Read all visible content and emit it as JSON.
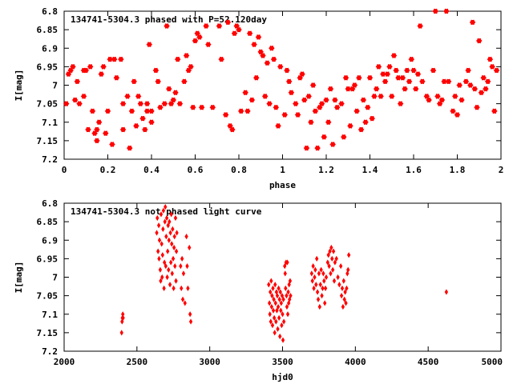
{
  "colors": {
    "points": "#ff0000",
    "axes": "#000000",
    "background": "#ffffff"
  },
  "chart_data": [
    {
      "type": "scatter",
      "title": "134741-5304.3 phased with P=52.120day",
      "xlabel": "phase",
      "ylabel": "I[mag]",
      "xlim": [
        0,
        2
      ],
      "ylim": [
        7.2,
        6.8
      ],
      "y_inverted": true,
      "xticks": [
        "0",
        "0.2",
        "0.4",
        "0.6",
        "0.8",
        "1",
        "1.2",
        "1.4",
        "1.6",
        "1.8",
        "2"
      ],
      "xtick_values": [
        0,
        0.2,
        0.4,
        0.6,
        0.8,
        1,
        1.2,
        1.4,
        1.6,
        1.8,
        2
      ],
      "yticks": [
        "6.8",
        "6.85",
        "6.9",
        "6.95",
        "7",
        "7.05",
        "7.1",
        "7.15",
        "7.2"
      ],
      "ytick_values": [
        6.8,
        6.85,
        6.9,
        6.95,
        7,
        7.05,
        7.1,
        7.15,
        7.2
      ],
      "marker": "star",
      "points": [
        [
          0.01,
          7.05
        ],
        [
          0.02,
          6.97
        ],
        [
          0.03,
          6.96
        ],
        [
          0.04,
          6.95
        ],
        [
          0.05,
          7.04
        ],
        [
          0.06,
          6.99
        ],
        [
          0.07,
          7.05
        ],
        [
          0.09,
          6.96
        ],
        [
          0.09,
          7.03
        ],
        [
          0.1,
          6.96
        ],
        [
          0.11,
          7.12
        ],
        [
          0.12,
          6.95
        ],
        [
          0.13,
          7.07
        ],
        [
          0.14,
          7.13
        ],
        [
          0.15,
          7.12
        ],
        [
          0.15,
          7.15
        ],
        [
          0.16,
          7.1
        ],
        [
          0.17,
          6.97
        ],
        [
          0.18,
          6.95
        ],
        [
          0.19,
          7.13
        ],
        [
          0.2,
          7.07
        ],
        [
          0.21,
          6.93
        ],
        [
          0.22,
          7.16
        ],
        [
          0.23,
          6.93
        ],
        [
          0.24,
          6.98
        ],
        [
          0.26,
          6.93
        ],
        [
          0.27,
          7.05
        ],
        [
          0.27,
          7.12
        ],
        [
          0.29,
          7.03
        ],
        [
          0.3,
          7.17
        ],
        [
          0.31,
          7.07
        ],
        [
          0.32,
          6.99
        ],
        [
          0.33,
          7.11
        ],
        [
          0.34,
          7.03
        ],
        [
          0.35,
          7.05
        ],
        [
          0.36,
          7.09
        ],
        [
          0.37,
          7.12
        ],
        [
          0.38,
          7.05
        ],
        [
          0.38,
          7.07
        ],
        [
          0.39,
          6.89
        ],
        [
          0.4,
          7.07
        ],
        [
          0.4,
          7.1
        ],
        [
          0.42,
          6.96
        ],
        [
          0.43,
          6.99
        ],
        [
          0.44,
          7.06
        ],
        [
          0.46,
          7.05
        ],
        [
          0.47,
          6.84
        ],
        [
          0.48,
          7.01
        ],
        [
          0.49,
          7.05
        ],
        [
          0.5,
          7.04
        ],
        [
          0.51,
          7.02
        ],
        [
          0.52,
          6.93
        ],
        [
          0.53,
          7.05
        ],
        [
          0.55,
          6.99
        ],
        [
          0.56,
          6.92
        ],
        [
          0.57,
          6.96
        ],
        [
          0.58,
          6.95
        ],
        [
          0.59,
          7.06
        ],
        [
          0.6,
          6.88
        ],
        [
          0.61,
          6.86
        ],
        [
          0.62,
          6.87
        ],
        [
          0.63,
          7.06
        ],
        [
          0.65,
          6.84
        ],
        [
          0.66,
          6.89
        ],
        [
          0.68,
          7.06
        ],
        [
          0.71,
          6.84
        ],
        [
          0.72,
          6.93
        ],
        [
          0.74,
          7.08
        ],
        [
          0.75,
          6.83
        ],
        [
          0.76,
          7.11
        ],
        [
          0.77,
          7.12
        ],
        [
          0.78,
          6.86
        ],
        [
          0.79,
          6.84
        ],
        [
          0.8,
          6.85
        ],
        [
          0.81,
          7.07
        ],
        [
          0.83,
          7.02
        ],
        [
          0.84,
          7.07
        ],
        [
          0.85,
          6.86
        ],
        [
          0.86,
          7.04
        ],
        [
          0.87,
          6.89
        ],
        [
          0.88,
          6.98
        ],
        [
          0.89,
          6.87
        ],
        [
          0.9,
          6.91
        ],
        [
          0.91,
          6.92
        ],
        [
          0.92,
          7.03
        ],
        [
          0.93,
          6.94
        ],
        [
          0.94,
          7.05
        ],
        [
          0.95,
          6.9
        ],
        [
          0.96,
          6.93
        ],
        [
          0.97,
          7.06
        ],
        [
          0.98,
          7.11
        ],
        [
          0.99,
          6.95
        ],
        [
          1.01,
          7.08
        ],
        [
          1.02,
          6.96
        ],
        [
          1.03,
          6.99
        ],
        [
          1.04,
          7.02
        ],
        [
          1.06,
          7.05
        ],
        [
          1.07,
          7.08
        ],
        [
          1.08,
          6.98
        ],
        [
          1.09,
          6.97
        ],
        [
          1.1,
          7.04
        ],
        [
          1.11,
          7.17
        ],
        [
          1.12,
          7.03
        ],
        [
          1.13,
          7.1
        ],
        [
          1.14,
          7.0
        ],
        [
          1.15,
          7.07
        ],
        [
          1.16,
          7.17
        ],
        [
          1.17,
          7.06
        ],
        [
          1.18,
          7.05
        ],
        [
          1.19,
          7.14
        ],
        [
          1.2,
          7.04
        ],
        [
          1.21,
          7.1
        ],
        [
          1.22,
          7.01
        ],
        [
          1.23,
          7.16
        ],
        [
          1.24,
          7.04
        ],
        [
          1.25,
          7.06
        ],
        [
          1.27,
          7.05
        ],
        [
          1.28,
          7.14
        ],
        [
          1.29,
          6.98
        ],
        [
          1.3,
          7.01
        ],
        [
          1.31,
          7.11
        ],
        [
          1.32,
          7.01
        ],
        [
          1.33,
          7.0
        ],
        [
          1.34,
          7.07
        ],
        [
          1.35,
          6.98
        ],
        [
          1.36,
          7.12
        ],
        [
          1.37,
          7.04
        ],
        [
          1.38,
          7.1
        ],
        [
          1.39,
          7.06
        ],
        [
          1.4,
          6.98
        ],
        [
          1.41,
          7.09
        ],
        [
          1.42,
          7.03
        ],
        [
          1.43,
          7.01
        ],
        [
          1.44,
          6.95
        ],
        [
          1.45,
          7.03
        ],
        [
          1.46,
          6.97
        ],
        [
          1.47,
          6.99
        ],
        [
          1.48,
          6.97
        ],
        [
          1.49,
          6.95
        ],
        [
          1.5,
          7.03
        ],
        [
          1.51,
          6.92
        ],
        [
          1.52,
          6.96
        ],
        [
          1.53,
          6.98
        ],
        [
          1.54,
          7.05
        ],
        [
          1.55,
          6.98
        ],
        [
          1.56,
          7.01
        ],
        [
          1.57,
          6.96
        ],
        [
          1.58,
          6.99
        ],
        [
          1.59,
          6.93
        ],
        [
          1.6,
          6.96
        ],
        [
          1.61,
          7.01
        ],
        [
          1.62,
          6.97
        ],
        [
          1.63,
          6.84
        ],
        [
          1.64,
          6.99
        ],
        [
          1.66,
          7.03
        ],
        [
          1.67,
          7.04
        ],
        [
          1.69,
          6.96
        ],
        [
          1.7,
          6.8
        ],
        [
          1.71,
          7.03
        ],
        [
          1.72,
          7.05
        ],
        [
          1.73,
          7.04
        ],
        [
          1.74,
          6.99
        ],
        [
          1.75,
          6.8
        ],
        [
          1.76,
          6.99
        ],
        [
          1.78,
          7.07
        ],
        [
          1.79,
          7.03
        ],
        [
          1.8,
          7.08
        ],
        [
          1.81,
          7.0
        ],
        [
          1.82,
          7.04
        ],
        [
          1.84,
          6.99
        ],
        [
          1.85,
          6.96
        ],
        [
          1.86,
          7.0
        ],
        [
          1.87,
          6.83
        ],
        [
          1.88,
          7.01
        ],
        [
          1.89,
          7.06
        ],
        [
          1.9,
          6.88
        ],
        [
          1.91,
          7.02
        ],
        [
          1.92,
          6.98
        ],
        [
          1.93,
          7.01
        ],
        [
          1.94,
          6.99
        ],
        [
          1.95,
          6.93
        ],
        [
          1.96,
          6.95
        ],
        [
          1.97,
          7.07
        ],
        [
          1.98,
          6.96
        ]
      ]
    },
    {
      "type": "scatter",
      "title": "134741-5304.3 not phased light curve",
      "xlabel": "hjd0",
      "ylabel": "I[mag]",
      "xlim": [
        2000,
        5000
      ],
      "ylim": [
        7.2,
        6.8
      ],
      "y_inverted": true,
      "xticks": [
        "2000",
        "2500",
        "3000",
        "3500",
        "4000",
        "4500",
        "5000"
      ],
      "xtick_values": [
        2000,
        2500,
        3000,
        3500,
        4000,
        4500,
        5000
      ],
      "yticks": [
        "6.8",
        "6.85",
        "6.9",
        "6.95",
        "7",
        "7.05",
        "7.1",
        "7.15",
        "7.2"
      ],
      "ytick_values": [
        6.8,
        6.85,
        6.9,
        6.95,
        7,
        7.05,
        7.1,
        7.15,
        7.2
      ],
      "marker": "diamond",
      "points": [
        [
          2395,
          7.15
        ],
        [
          2398,
          7.12
        ],
        [
          2400,
          7.11
        ],
        [
          2403,
          7.1
        ],
        [
          2405,
          7.11
        ],
        [
          2636,
          6.88
        ],
        [
          2640,
          6.84
        ],
        [
          2645,
          6.93
        ],
        [
          2650,
          6.86
        ],
        [
          2652,
          6.95
        ],
        [
          2655,
          6.9
        ],
        [
          2660,
          6.98
        ],
        [
          2663,
          7.01
        ],
        [
          2666,
          6.83
        ],
        [
          2670,
          6.91
        ],
        [
          2673,
          7.0
        ],
        [
          2676,
          6.94
        ],
        [
          2679,
          6.87
        ],
        [
          2682,
          6.82
        ],
        [
          2686,
          7.03
        ],
        [
          2689,
          6.96
        ],
        [
          2692,
          6.85
        ],
        [
          2695,
          6.81
        ],
        [
          2698,
          6.97
        ],
        [
          2701,
          6.89
        ],
        [
          2705,
          6.84
        ],
        [
          2708,
          7.0
        ],
        [
          2711,
          6.93
        ],
        [
          2714,
          6.86
        ],
        [
          2717,
          6.98
        ],
        [
          2720,
          6.9
        ],
        [
          2723,
          6.85
        ],
        [
          2727,
          7.02
        ],
        [
          2730,
          6.88
        ],
        [
          2733,
          6.96
        ],
        [
          2736,
          6.83
        ],
        [
          2739,
          6.91
        ],
        [
          2742,
          6.99
        ],
        [
          2745,
          6.87
        ],
        [
          2749,
          6.95
        ],
        [
          2752,
          7.03
        ],
        [
          2755,
          6.92
        ],
        [
          2758,
          6.89
        ],
        [
          2761,
          6.97
        ],
        [
          2765,
          6.84
        ],
        [
          2768,
          7.01
        ],
        [
          2771,
          6.93
        ],
        [
          2774,
          6.88
        ],
        [
          2800,
          6.97
        ],
        [
          2805,
          7.03
        ],
        [
          2810,
          6.95
        ],
        [
          2815,
          7.06
        ],
        [
          2820,
          6.99
        ],
        [
          2830,
          7.07
        ],
        [
          2840,
          6.89
        ],
        [
          2845,
          6.97
        ],
        [
          2850,
          7.03
        ],
        [
          2860,
          6.92
        ],
        [
          2865,
          7.1
        ],
        [
          2870,
          7.12
        ],
        [
          3405,
          7.02
        ],
        [
          3410,
          7.07
        ],
        [
          3413,
          7.1
        ],
        [
          3416,
          7.04
        ],
        [
          3419,
          7.12
        ],
        [
          3422,
          7.01
        ],
        [
          3425,
          7.08
        ],
        [
          3428,
          7.05
        ],
        [
          3431,
          7.13
        ],
        [
          3434,
          7.03
        ],
        [
          3437,
          7.09
        ],
        [
          3440,
          7.06
        ],
        [
          3443,
          7.11
        ],
        [
          3446,
          7.15
        ],
        [
          3449,
          7.02
        ],
        [
          3452,
          7.07
        ],
        [
          3455,
          7.12
        ],
        [
          3458,
          7.04
        ],
        [
          3461,
          7.09
        ],
        [
          3464,
          7.05
        ],
        [
          3467,
          7.14
        ],
        [
          3470,
          7.08
        ],
        [
          3473,
          7.03
        ],
        [
          3476,
          7.11
        ],
        [
          3479,
          7.06
        ],
        [
          3482,
          7.16
        ],
        [
          3485,
          7.04
        ],
        [
          3488,
          7.09
        ],
        [
          3491,
          7.07
        ],
        [
          3494,
          7.13
        ],
        [
          3497,
          7.05
        ],
        [
          3500,
          7.1
        ],
        [
          3503,
          7.17
        ],
        [
          3506,
          7.06
        ],
        [
          3509,
          7.12
        ],
        [
          3515,
          6.97
        ],
        [
          3518,
          6.99
        ],
        [
          3521,
          7.03
        ],
        [
          3524,
          6.96
        ],
        [
          3527,
          7.05
        ],
        [
          3530,
          7.08
        ],
        [
          3533,
          6.96
        ],
        [
          3536,
          7.1
        ],
        [
          3539,
          7.04
        ],
        [
          3542,
          7.07
        ],
        [
          3545,
          7.02
        ],
        [
          3548,
          7.06
        ],
        [
          3552,
          7.01
        ],
        [
          3555,
          7.05
        ],
        [
          3700,
          6.99
        ],
        [
          3705,
          7.01
        ],
        [
          3710,
          6.97
        ],
        [
          3715,
          7.03
        ],
        [
          3720,
          7.0
        ],
        [
          3725,
          6.98
        ],
        [
          3730,
          7.02
        ],
        [
          3735,
          6.95
        ],
        [
          3740,
          7.04
        ],
        [
          3745,
          7.06
        ],
        [
          3750,
          6.99
        ],
        [
          3755,
          7.08
        ],
        [
          3760,
          7.02
        ],
        [
          3765,
          6.98
        ],
        [
          3770,
          7.05
        ],
        [
          3775,
          7.03
        ],
        [
          3780,
          6.99
        ],
        [
          3785,
          7.01
        ],
        [
          3790,
          7.07
        ],
        [
          3795,
          7.03
        ],
        [
          3800,
          7.0
        ],
        [
          3810,
          6.96
        ],
        [
          3815,
          6.94
        ],
        [
          3820,
          6.97
        ],
        [
          3825,
          6.93
        ],
        [
          3830,
          6.99
        ],
        [
          3835,
          6.92
        ],
        [
          3840,
          6.95
        ],
        [
          3845,
          6.98
        ],
        [
          3850,
          6.93
        ],
        [
          3855,
          7.01
        ],
        [
          3860,
          6.96
        ],
        [
          3870,
          6.95
        ],
        [
          3880,
          7.0
        ],
        [
          3890,
          7.02
        ],
        [
          3900,
          6.97
        ],
        [
          3905,
          7.05
        ],
        [
          3910,
          7.03
        ],
        [
          3915,
          7.08
        ],
        [
          3920,
          7.01
        ],
        [
          3925,
          7.06
        ],
        [
          3930,
          7.04
        ],
        [
          3935,
          7.07
        ],
        [
          3940,
          7.03
        ],
        [
          3945,
          6.99
        ],
        [
          3950,
          6.98
        ],
        [
          3955,
          6.94
        ],
        [
          4625,
          7.04
        ]
      ]
    }
  ]
}
